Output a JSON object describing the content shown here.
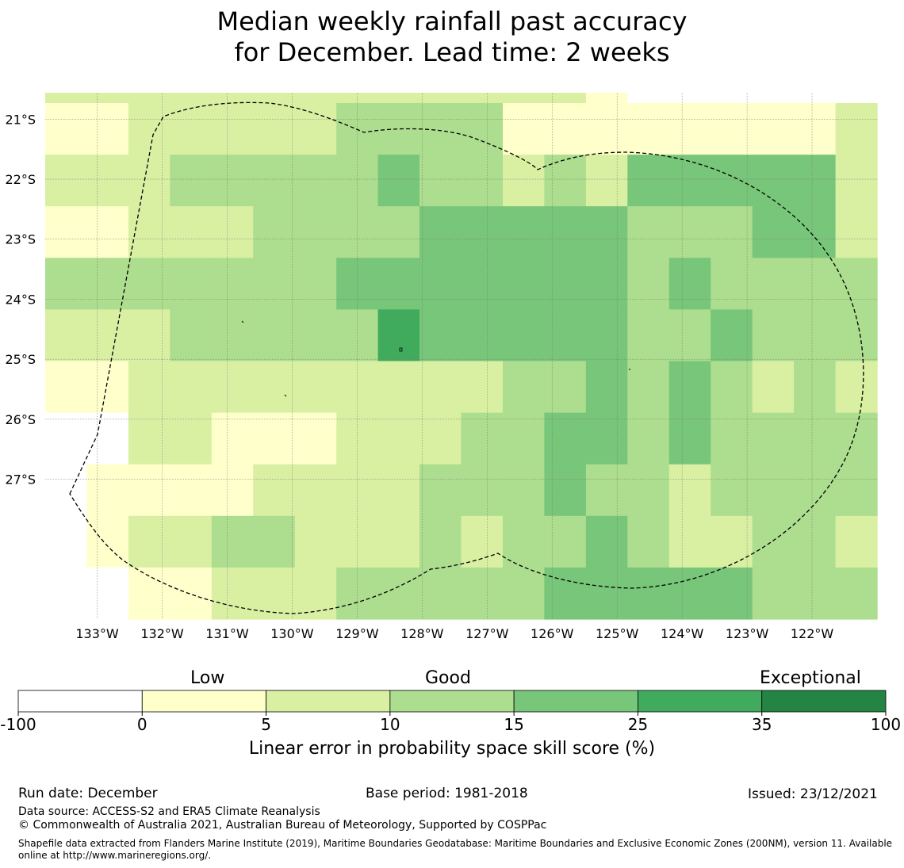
{
  "title": {
    "line1": "Median weekly rainfall past accuracy",
    "line2": "for December. Lead time: 2 weeks"
  },
  "map": {
    "lon_labels": [
      "133°W",
      "132°W",
      "131°W",
      "130°W",
      "129°W",
      "128°W",
      "127°W",
      "126°W",
      "125°W",
      "124°W",
      "123°W",
      "122°W"
    ],
    "lat_labels": [
      "21°S",
      "22°S",
      "23°S",
      "24°S",
      "25°S",
      "26°S",
      "27°S"
    ],
    "lon_range": [
      -133.8,
      -121.0
    ],
    "lat_range": [
      -29.33,
      -20.56
    ],
    "grid_cells_deg": 0.833,
    "class_colors": [
      "#ffffff",
      "#ffffcc",
      "#d9f0a3",
      "#addd8e",
      "#78c679",
      "#41ab5d",
      "#238443"
    ],
    "grid": [
      "22222222222221000000",
      "11222223333111111112",
      "22233333433232444442",
      "11222333344444333442",
      "33333334444444343333",
      "22233333544444334333",
      "11222222222334343232",
      "00221112223344343333",
      "01111222233343323333",
      "01223322232334322332",
      "00112223333344444333"
    ],
    "region_label": "EEZ boundary"
  },
  "colorbar": {
    "category_labels": [
      "Low",
      "Good",
      "Exceptional"
    ],
    "tick_labels": [
      "-100",
      "0",
      "5",
      "10",
      "15",
      "25",
      "35",
      "100"
    ],
    "colors": [
      "#ffffff",
      "#ffffcc",
      "#d9f0a3",
      "#addd8e",
      "#78c679",
      "#41ab5d",
      "#238443"
    ],
    "axis_label": "Linear error in probability space skill score (%)"
  },
  "footer": {
    "run_date": "Run date: December",
    "base_period": "Base period: 1981-2018",
    "issued": "Issued: 23/12/2021",
    "data_source": "Data source: ACCESS-S2 and ERA5 Climate Reanalysis",
    "copyright": "© Commonwealth of Australia 2021, Australian Bureau of Meteorology, Supported by COSPPac",
    "shapefile": "Shapefile data extracted from Flanders Marine Institute (2019), Maritime Boundaries Geodatabase: Maritime Boundaries and Exclusive Economic Zones (200NM), version 11. Available online at http://www.marineregions.org/."
  }
}
